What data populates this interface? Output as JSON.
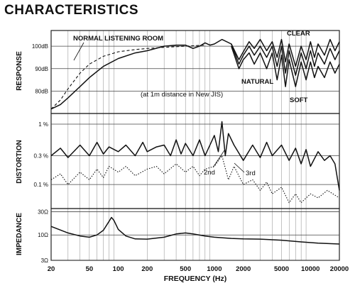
{
  "page_title": "CHARACTERISTICS",
  "chart_data": {
    "type": "line",
    "xlabel": "FREQUENCY (Hz)",
    "x_scale": "log",
    "xlim": [
      20,
      20000
    ],
    "x_ticks": [
      {
        "v": 20,
        "label": "20"
      },
      {
        "v": 50,
        "label": "50"
      },
      {
        "v": 100,
        "label": "100"
      },
      {
        "v": 200,
        "label": "200"
      },
      {
        "v": 500,
        "label": "500"
      },
      {
        "v": 1000,
        "label": "1000"
      },
      {
        "v": 2000,
        "label": "2000"
      },
      {
        "v": 5000,
        "label": "5000"
      },
      {
        "v": 10000,
        "label": "10000"
      },
      {
        "v": 20000,
        "label": "20000"
      }
    ],
    "panels": [
      {
        "id": "response",
        "ylabel": "RESPONSE",
        "unit": "dB",
        "ylim": [
          70,
          107
        ],
        "y_ticks": [
          {
            "v": 100,
            "label": "100dB"
          },
          {
            "v": 90,
            "label": "90dB"
          },
          {
            "v": 80,
            "label": "80dB"
          }
        ],
        "note": "(at 1m distance in New JIS)",
        "series": [
          {
            "name": "NORMAL LISTENING ROOM",
            "style": "dashed",
            "points": [
              [
                20,
                72
              ],
              [
                25,
                76
              ],
              [
                30,
                81
              ],
              [
                40,
                88
              ],
              [
                50,
                92
              ],
              [
                70,
                95.5
              ],
              [
                100,
                97.5
              ],
              [
                150,
                98.5
              ],
              [
                200,
                99
              ],
              [
                300,
                99.5
              ],
              [
                500,
                100
              ],
              [
                800,
                100.5
              ]
            ]
          },
          {
            "name": "CLEAR",
            "style": "solid",
            "points": [
              [
                20,
                72
              ],
              [
                25,
                74
              ],
              [
                30,
                77
              ],
              [
                40,
                82
              ],
              [
                50,
                86
              ],
              [
                70,
                91
              ],
              [
                100,
                94.5
              ],
              [
                150,
                97
              ],
              [
                200,
                98
              ],
              [
                300,
                100
              ],
              [
                400,
                100.5
              ],
              [
                500,
                100.5
              ],
              [
                600,
                99
              ],
              [
                700,
                100
              ],
              [
                800,
                101.5
              ],
              [
                900,
                100.5
              ],
              [
                1000,
                101
              ],
              [
                1200,
                103
              ],
              [
                1500,
                101
              ],
              [
                1800,
                94
              ],
              [
                2000,
                97.5
              ],
              [
                2300,
                102
              ],
              [
                2600,
                99
              ],
              [
                3000,
                103
              ],
              [
                3500,
                98
              ],
              [
                4000,
                102
              ],
              [
                4500,
                95
              ],
              [
                5000,
                103
              ],
              [
                5500,
                93
              ],
              [
                6000,
                101
              ],
              [
                7000,
                91
              ],
              [
                8000,
                100
              ],
              [
                9000,
                94
              ],
              [
                10000,
                102
              ],
              [
                11000,
                95
              ],
              [
                12000,
                101
              ],
              [
                14000,
                96
              ],
              [
                16000,
                103
              ],
              [
                18000,
                98
              ],
              [
                20000,
                102
              ]
            ]
          },
          {
            "name": "NATURAL",
            "style": "solid",
            "points": [
              [
                1500,
                101
              ],
              [
                1800,
                92
              ],
              [
                2000,
                96
              ],
              [
                2300,
                100
              ],
              [
                2600,
                96
              ],
              [
                3000,
                100
              ],
              [
                3500,
                95
              ],
              [
                4000,
                100
              ],
              [
                4500,
                91
              ],
              [
                5000,
                100
              ],
              [
                5500,
                88
              ],
              [
                6000,
                98
              ],
              [
                7000,
                87
              ],
              [
                8000,
                97
              ],
              [
                9000,
                90
              ],
              [
                10000,
                98
              ],
              [
                11000,
                91
              ],
              [
                12000,
                97
              ],
              [
                14000,
                92
              ],
              [
                16000,
                99
              ],
              [
                18000,
                94
              ],
              [
                20000,
                98
              ]
            ]
          },
          {
            "name": "SOFT",
            "style": "solid",
            "points": [
              [
                1500,
                100
              ],
              [
                1800,
                90
              ],
              [
                2000,
                94
              ],
              [
                2300,
                97
              ],
              [
                2600,
                92
              ],
              [
                3000,
                97
              ],
              [
                3500,
                90
              ],
              [
                4000,
                97
              ],
              [
                4500,
                85
              ],
              [
                5000,
                96
              ],
              [
                5500,
                82
              ],
              [
                6000,
                94
              ],
              [
                7000,
                82
              ],
              [
                8000,
                93
              ],
              [
                9000,
                85
              ],
              [
                10000,
                93
              ],
              [
                11000,
                86
              ],
              [
                12000,
                91
              ],
              [
                14000,
                86
              ],
              [
                16000,
                93
              ],
              [
                18000,
                88
              ],
              [
                20000,
                92
              ]
            ]
          }
        ]
      },
      {
        "id": "distortion",
        "ylabel": "DISTORTION",
        "unit": "%",
        "y_scale": "log",
        "ylim": [
          0.04,
          1.5
        ],
        "y_ticks": [
          {
            "v": 1,
            "label": "1 %"
          },
          {
            "v": 0.3,
            "label": "0.3 %"
          },
          {
            "v": 0.1,
            "label": "0.1 %"
          }
        ],
        "series": [
          {
            "name": "2nd",
            "style": "solid",
            "points": [
              [
                20,
                0.3
              ],
              [
                25,
                0.4
              ],
              [
                30,
                0.28
              ],
              [
                40,
                0.45
              ],
              [
                50,
                0.3
              ],
              [
                60,
                0.5
              ],
              [
                70,
                0.32
              ],
              [
                80,
                0.42
              ],
              [
                100,
                0.35
              ],
              [
                120,
                0.45
              ],
              [
                150,
                0.3
              ],
              [
                180,
                0.5
              ],
              [
                200,
                0.35
              ],
              [
                250,
                0.42
              ],
              [
                300,
                0.45
              ],
              [
                350,
                0.3
              ],
              [
                400,
                0.55
              ],
              [
                450,
                0.32
              ],
              [
                500,
                0.48
              ],
              [
                600,
                0.3
              ],
              [
                700,
                0.55
              ],
              [
                800,
                0.3
              ],
              [
                1000,
                0.65
              ],
              [
                1100,
                0.35
              ],
              [
                1200,
                1.1
              ],
              [
                1300,
                0.3
              ],
              [
                1400,
                0.7
              ],
              [
                1600,
                0.45
              ],
              [
                2000,
                0.25
              ],
              [
                2500,
                0.45
              ],
              [
                3000,
                0.28
              ],
              [
                3500,
                0.5
              ],
              [
                4000,
                0.3
              ],
              [
                5000,
                0.45
              ],
              [
                6000,
                0.25
              ],
              [
                7000,
                0.4
              ],
              [
                8000,
                0.22
              ],
              [
                9000,
                0.38
              ],
              [
                10000,
                0.2
              ],
              [
                12000,
                0.35
              ],
              [
                14000,
                0.25
              ],
              [
                16000,
                0.3
              ],
              [
                18000,
                0.22
              ],
              [
                20000,
                0.08
              ]
            ]
          },
          {
            "name": "3rd",
            "style": "dotted",
            "points": [
              [
                20,
                0.12
              ],
              [
                25,
                0.15
              ],
              [
                30,
                0.1
              ],
              [
                40,
                0.16
              ],
              [
                50,
                0.12
              ],
              [
                60,
                0.18
              ],
              [
                70,
                0.13
              ],
              [
                80,
                0.2
              ],
              [
                100,
                0.16
              ],
              [
                120,
                0.2
              ],
              [
                150,
                0.14
              ],
              [
                200,
                0.18
              ],
              [
                250,
                0.2
              ],
              [
                300,
                0.15
              ],
              [
                400,
                0.22
              ],
              [
                500,
                0.16
              ],
              [
                600,
                0.2
              ],
              [
                700,
                0.14
              ],
              [
                800,
                0.18
              ],
              [
                1000,
                0.2
              ],
              [
                1200,
                0.3
              ],
              [
                1400,
                0.12
              ],
              [
                1600,
                0.2
              ],
              [
                2000,
                0.1
              ],
              [
                2500,
                0.12
              ],
              [
                3000,
                0.08
              ],
              [
                3500,
                0.11
              ],
              [
                4000,
                0.07
              ],
              [
                5000,
                0.09
              ],
              [
                6000,
                0.05
              ],
              [
                7000,
                0.07
              ],
              [
                8000,
                0.05
              ],
              [
                10000,
                0.07
              ],
              [
                12000,
                0.06
              ],
              [
                15000,
                0.08
              ],
              [
                20000,
                0.06
              ]
            ]
          }
        ]
      },
      {
        "id": "impedance",
        "ylabel": "IMPEDANCE",
        "unit": "Ω",
        "y_scale": "log",
        "ylim": [
          3,
          35
        ],
        "y_ticks": [
          {
            "v": 30,
            "label": "30Ω"
          },
          {
            "v": 10,
            "label": "10Ω"
          },
          {
            "v": 3,
            "label": "3Ω"
          }
        ],
        "series": [
          {
            "name": "Impedance",
            "style": "solid",
            "points": [
              [
                20,
                15
              ],
              [
                30,
                11
              ],
              [
                40,
                9.5
              ],
              [
                50,
                9
              ],
              [
                60,
                10
              ],
              [
                70,
                12.5
              ],
              [
                80,
                19
              ],
              [
                85,
                23
              ],
              [
                90,
                20
              ],
              [
                100,
                13
              ],
              [
                120,
                9.5
              ],
              [
                150,
                8.3
              ],
              [
                200,
                8.2
              ],
              [
                300,
                9
              ],
              [
                400,
                10.5
              ],
              [
                500,
                11
              ],
              [
                600,
                10.5
              ],
              [
                800,
                9.5
              ],
              [
                1000,
                9
              ],
              [
                1500,
                8.5
              ],
              [
                2000,
                8.3
              ],
              [
                3000,
                8.2
              ],
              [
                5000,
                7.8
              ],
              [
                8000,
                7.2
              ],
              [
                12000,
                6.8
              ],
              [
                20000,
                6.5
              ]
            ]
          }
        ]
      }
    ]
  }
}
